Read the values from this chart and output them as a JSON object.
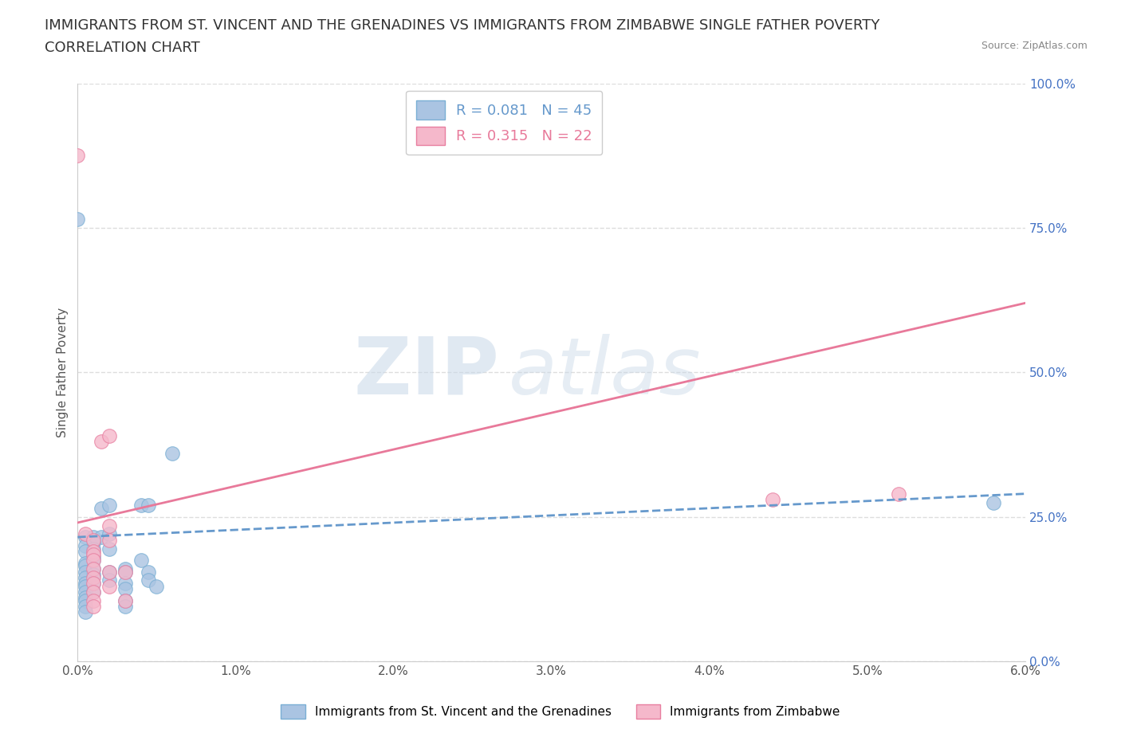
{
  "title_line1": "IMMIGRANTS FROM ST. VINCENT AND THE GRENADINES VS IMMIGRANTS FROM ZIMBABWE SINGLE FATHER POVERTY",
  "title_line2": "CORRELATION CHART",
  "source_text": "Source: ZipAtlas.com",
  "ylabel": "Single Father Poverty",
  "xlabel_blue": "Immigrants from St. Vincent and the Grenadines",
  "xlabel_pink": "Immigrants from Zimbabwe",
  "xmin": 0.0,
  "xmax": 0.06,
  "ymin": 0.0,
  "ymax": 1.0,
  "R_blue": 0.081,
  "N_blue": 45,
  "R_pink": 0.315,
  "N_pink": 22,
  "blue_color": "#aac4e2",
  "pink_color": "#f5b8cb",
  "blue_edge_color": "#7aafd4",
  "pink_edge_color": "#e87fa0",
  "blue_line_color": "#6699cc",
  "pink_line_color": "#e8799a",
  "blue_scatter": [
    [
      0.0005,
      0.215
    ],
    [
      0.001,
      0.215
    ],
    [
      0.0015,
      0.215
    ],
    [
      0.001,
      0.205
    ],
    [
      0.0005,
      0.2
    ],
    [
      0.001,
      0.195
    ],
    [
      0.0005,
      0.19
    ],
    [
      0.001,
      0.18
    ],
    [
      0.001,
      0.175
    ],
    [
      0.0005,
      0.17
    ],
    [
      0.0005,
      0.165
    ],
    [
      0.001,
      0.16
    ],
    [
      0.0005,
      0.155
    ],
    [
      0.001,
      0.15
    ],
    [
      0.0005,
      0.145
    ],
    [
      0.0005,
      0.135
    ],
    [
      0.001,
      0.135
    ],
    [
      0.0005,
      0.13
    ],
    [
      0.0005,
      0.12
    ],
    [
      0.001,
      0.12
    ],
    [
      0.0005,
      0.11
    ],
    [
      0.0005,
      0.105
    ],
    [
      0.0005,
      0.095
    ],
    [
      0.0005,
      0.085
    ],
    [
      0.0015,
      0.265
    ],
    [
      0.002,
      0.27
    ],
    [
      0.002,
      0.22
    ],
    [
      0.002,
      0.195
    ],
    [
      0.002,
      0.155
    ],
    [
      0.002,
      0.14
    ],
    [
      0.003,
      0.16
    ],
    [
      0.003,
      0.155
    ],
    [
      0.003,
      0.135
    ],
    [
      0.003,
      0.125
    ],
    [
      0.003,
      0.105
    ],
    [
      0.003,
      0.095
    ],
    [
      0.004,
      0.175
    ],
    [
      0.0045,
      0.155
    ],
    [
      0.0045,
      0.14
    ],
    [
      0.005,
      0.13
    ],
    [
      0.004,
      0.27
    ],
    [
      0.0045,
      0.27
    ],
    [
      0.0,
      0.765
    ],
    [
      0.006,
      0.36
    ],
    [
      0.058,
      0.275
    ]
  ],
  "pink_scatter": [
    [
      0.0005,
      0.22
    ],
    [
      0.001,
      0.21
    ],
    [
      0.001,
      0.19
    ],
    [
      0.001,
      0.185
    ],
    [
      0.001,
      0.175
    ],
    [
      0.001,
      0.16
    ],
    [
      0.001,
      0.145
    ],
    [
      0.001,
      0.135
    ],
    [
      0.001,
      0.12
    ],
    [
      0.001,
      0.105
    ],
    [
      0.001,
      0.095
    ],
    [
      0.0015,
      0.38
    ],
    [
      0.002,
      0.39
    ],
    [
      0.002,
      0.235
    ],
    [
      0.002,
      0.21
    ],
    [
      0.002,
      0.155
    ],
    [
      0.002,
      0.13
    ],
    [
      0.003,
      0.155
    ],
    [
      0.003,
      0.105
    ],
    [
      0.0,
      0.875
    ],
    [
      0.044,
      0.28
    ],
    [
      0.052,
      0.29
    ]
  ],
  "yticks": [
    0.0,
    0.25,
    0.5,
    0.75,
    1.0
  ],
  "ytick_labels": [
    "0.0%",
    "25.0%",
    "50.0%",
    "75.0%",
    "100.0%"
  ],
  "xticks": [
    0.0,
    0.01,
    0.02,
    0.03,
    0.04,
    0.05,
    0.06
  ],
  "xtick_labels": [
    "0.0%",
    "1.0%",
    "2.0%",
    "3.0%",
    "4.0%",
    "5.0%",
    "6.0%"
  ],
  "watermark_zip": "ZIP",
  "watermark_atlas": "atlas",
  "grid_color": "#dddddd",
  "background_color": "#ffffff",
  "title_fontsize": 13,
  "label_fontsize": 11,
  "tick_fontsize": 11,
  "legend_fontsize": 13
}
